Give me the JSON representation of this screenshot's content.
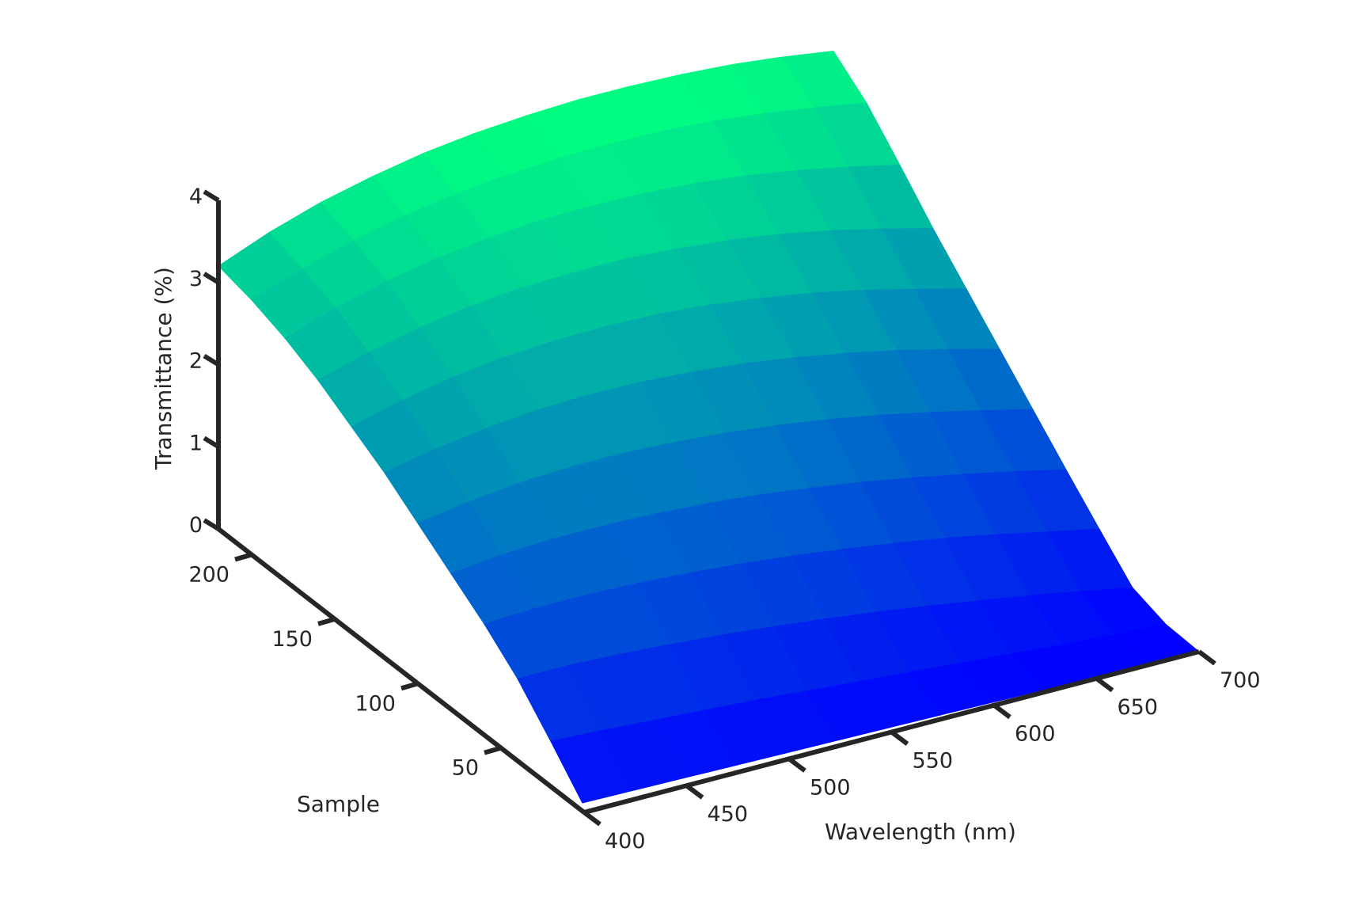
{
  "chart_data": {
    "type": "surface3d",
    "title": "",
    "xlabel": "Wavelength (nm)",
    "ylabel": "Sample",
    "zlabel": "Transmittance (%)",
    "x_ticks": [
      "400",
      "450",
      "500",
      "550",
      "600",
      "650",
      "700"
    ],
    "y_ticks": [
      "50",
      "100",
      "150",
      "200"
    ],
    "z_ticks": [
      "0",
      "1",
      "2",
      "3",
      "4"
    ],
    "xlim": [
      400,
      700
    ],
    "ylim": [
      0,
      220
    ],
    "zlim": [
      0,
      4
    ],
    "grid": false,
    "colormap": "winter",
    "colormap_low": "#0000ff",
    "colormap_high": "#00ff80",
    "wavelength_nm": [
      400,
      425,
      450,
      475,
      500,
      525,
      550,
      575,
      600,
      625,
      650,
      675,
      700
    ],
    "samples": [
      {
        "sample": 1,
        "transmittance": [
          0.1,
          0.09,
          0.08,
          0.07,
          0.06,
          0.05,
          0.04,
          0.03,
          0.02,
          0.01,
          0.01,
          0.0,
          0.0
        ]
      },
      {
        "sample": 20,
        "transmittance": [
          0.55,
          0.52,
          0.48,
          0.44,
          0.4,
          0.35,
          0.3,
          0.25,
          0.2,
          0.15,
          0.1,
          0.05,
          0.02
        ]
      },
      {
        "sample": 40,
        "transmittance": [
          1.0,
          1.0,
          0.97,
          0.93,
          0.88,
          0.82,
          0.75,
          0.67,
          0.58,
          0.48,
          0.38,
          0.27,
          0.15
        ]
      },
      {
        "sample": 60,
        "transmittance": [
          1.35,
          1.38,
          1.38,
          1.36,
          1.32,
          1.27,
          1.2,
          1.12,
          1.03,
          0.93,
          0.81,
          0.68,
          0.55
        ]
      },
      {
        "sample": 80,
        "transmittance": [
          1.65,
          1.72,
          1.75,
          1.75,
          1.73,
          1.69,
          1.63,
          1.55,
          1.46,
          1.35,
          1.23,
          1.1,
          0.96
        ]
      },
      {
        "sample": 100,
        "transmittance": [
          1.95,
          2.05,
          2.12,
          2.15,
          2.15,
          2.12,
          2.07,
          2.0,
          1.91,
          1.8,
          1.67,
          1.53,
          1.38
        ]
      },
      {
        "sample": 120,
        "transmittance": [
          2.25,
          2.38,
          2.47,
          2.53,
          2.55,
          2.54,
          2.5,
          2.44,
          2.35,
          2.24,
          2.11,
          1.96,
          1.8
        ]
      },
      {
        "sample": 140,
        "transmittance": [
          2.5,
          2.66,
          2.78,
          2.86,
          2.9,
          2.91,
          2.89,
          2.84,
          2.76,
          2.66,
          2.53,
          2.38,
          2.22
        ]
      },
      {
        "sample": 160,
        "transmittance": [
          2.75,
          2.93,
          3.07,
          3.17,
          3.23,
          3.25,
          3.25,
          3.21,
          3.15,
          3.06,
          2.94,
          2.8,
          2.64
        ]
      },
      {
        "sample": 180,
        "transmittance": [
          2.95,
          3.16,
          3.32,
          3.44,
          3.52,
          3.57,
          3.58,
          3.57,
          3.53,
          3.46,
          3.36,
          3.24,
          3.1
        ]
      },
      {
        "sample": 200,
        "transmittance": [
          3.1,
          3.32,
          3.5,
          3.64,
          3.74,
          3.81,
          3.85,
          3.86,
          3.85,
          3.81,
          3.74,
          3.65,
          3.54
        ]
      },
      {
        "sample": 220,
        "transmittance": [
          3.2,
          3.45,
          3.65,
          3.8,
          3.92,
          4.0,
          4.05,
          4.08,
          4.08,
          4.06,
          4.02,
          3.95,
          3.86
        ]
      }
    ]
  }
}
